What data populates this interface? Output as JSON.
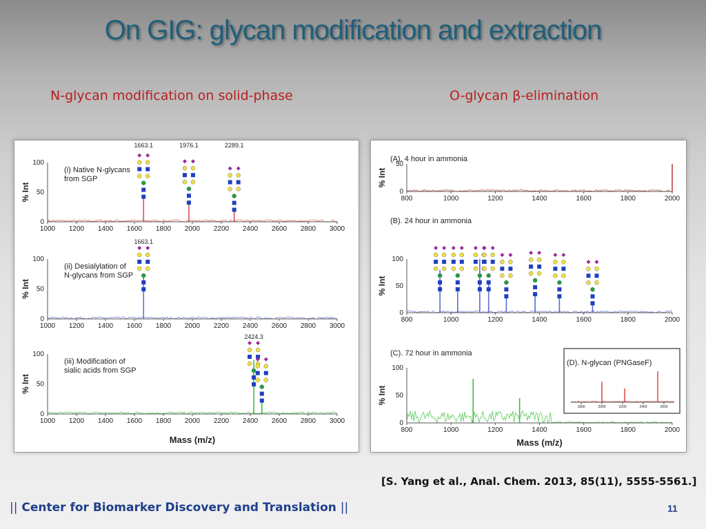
{
  "slide": {
    "title": "On GIG: glycan modification and extraction",
    "subtitle_left": "N-glycan modification on solid-phase",
    "subtitle_right_prefix": "O-glycan ",
    "subtitle_right_symbol": "β",
    "subtitle_right_suffix": "-elimination",
    "citation": "[S. Yang et al., Anal. Chem. 2013, 85(11), 5555-5561.]",
    "footer_bar": "||",
    "footer_text": "Center for Biomarker Discovery and Translation",
    "page_number": "11"
  },
  "chart_data": [
    {
      "id": "i",
      "type": "line",
      "color": "#e05050",
      "annotation": "(i) Native N-glycans\nfrom SGP",
      "xlim": [
        1000,
        3000
      ],
      "ylim": [
        0,
        100
      ],
      "xticks": [
        1000,
        1200,
        1400,
        1600,
        1800,
        2000,
        2200,
        2400,
        2600,
        2800,
        3000
      ],
      "yticks": [
        0,
        50,
        100
      ],
      "ylabel": "% Int",
      "xlabel": "",
      "peaks": [
        {
          "x": 1663.1,
          "y": 40
        },
        {
          "x": 1976.1,
          "y": 30
        },
        {
          "x": 2289.1,
          "y": 18
        }
      ],
      "peak_labels": [
        {
          "x": 1663.1,
          "text": "1663.1"
        },
        {
          "x": 1976.1,
          "text": "1976.1"
        },
        {
          "x": 2289.1,
          "text": "2289.1"
        }
      ]
    },
    {
      "id": "ii",
      "type": "line",
      "color": "#6070d0",
      "annotation": "(ii) Desialylation of\nN-glycans from SGP",
      "xlim": [
        1000,
        3000
      ],
      "ylim": [
        0,
        100
      ],
      "xticks": [
        1000,
        1200,
        1400,
        1600,
        1800,
        2000,
        2200,
        2400,
        2600,
        2800,
        3000
      ],
      "yticks": [
        0,
        50,
        100
      ],
      "ylabel": "% Int",
      "xlabel": "",
      "peaks": [
        {
          "x": 1663.1,
          "y": 75
        }
      ],
      "peak_labels": [
        {
          "x": 1663.1,
          "text": "1663.1"
        }
      ]
    },
    {
      "id": "iii",
      "type": "line",
      "color": "#3cbf3c",
      "annotation": "(iii) Modification of\nsialic acids from SGP",
      "xlim": [
        1000,
        3000
      ],
      "ylim": [
        0,
        100
      ],
      "xticks": [
        1000,
        1200,
        1400,
        1600,
        1800,
        2000,
        2200,
        2400,
        2600,
        2800,
        3000
      ],
      "yticks": [
        0,
        50,
        100
      ],
      "ylabel": "% Int",
      "xlabel": "Mass (m/z)",
      "peaks": [
        {
          "x": 2424.3,
          "y": 90
        },
        {
          "x": 2480,
          "y": 20
        }
      ],
      "peak_labels": [
        {
          "x": 2424.3,
          "text": "2424.3"
        }
      ]
    },
    {
      "id": "A",
      "type": "line",
      "color": "#c04040",
      "annotation": "(A). 4 hour in ammonia",
      "xlim": [
        800,
        2000
      ],
      "ylim": [
        0,
        50
      ],
      "xticks": [
        800,
        1000,
        1200,
        1400,
        1600,
        1800,
        2000
      ],
      "yticks": [
        0,
        50
      ],
      "ylabel": "% Int",
      "xlabel": "",
      "peaks": [
        {
          "x": 2000,
          "y": 50
        }
      ]
    },
    {
      "id": "B",
      "type": "line",
      "color": "#5a6ad0",
      "annotation": "(B). 24 hour in ammonia",
      "xlim": [
        800,
        2000
      ],
      "ylim": [
        0,
        100
      ],
      "xticks": [
        800,
        1000,
        1200,
        1400,
        1600,
        1800,
        2000
      ],
      "yticks": [
        0,
        50,
        100
      ],
      "ylabel": "% Int",
      "xlabel": "",
      "peaks": [
        {
          "x": 950,
          "y": 80
        },
        {
          "x": 1030,
          "y": 45
        },
        {
          "x": 1130,
          "y": 100
        },
        {
          "x": 1170,
          "y": 60
        },
        {
          "x": 1250,
          "y": 28
        },
        {
          "x": 1380,
          "y": 32
        },
        {
          "x": 1490,
          "y": 28
        },
        {
          "x": 1640,
          "y": 15
        }
      ]
    },
    {
      "id": "C",
      "type": "line",
      "color": "#3cbf3c",
      "annotation": "(C). 72 hour in ammonia",
      "xlim": [
        800,
        2000
      ],
      "ylim": [
        0,
        100
      ],
      "xticks": [
        800,
        1000,
        1200,
        1400,
        1600,
        1800,
        2000
      ],
      "yticks": [
        0,
        50,
        100
      ],
      "ylabel": "% Int",
      "xlabel": "Mass (m/z)",
      "peaks": [
        {
          "x": 1100,
          "y": 80
        },
        {
          "x": 1310,
          "y": 45
        }
      ],
      "inset": {
        "xticks": [
          1800,
          2000,
          2200,
          2400,
          2600
        ],
        "xlim": [
          1700,
          2700
        ]
      }
    },
    {
      "id": "D",
      "type": "line",
      "color": "#e05050",
      "annotation": "(D). N-glycan (PNGaseF)",
      "xlim": [
        1700,
        2700
      ],
      "ylim": [
        0,
        100
      ],
      "xticks": [
        1800,
        2000,
        2200,
        2400,
        2600
      ],
      "peaks": [
        {
          "x": 2000,
          "y": 60
        },
        {
          "x": 2220,
          "y": 40
        },
        {
          "x": 2540,
          "y": 90
        }
      ]
    }
  ]
}
